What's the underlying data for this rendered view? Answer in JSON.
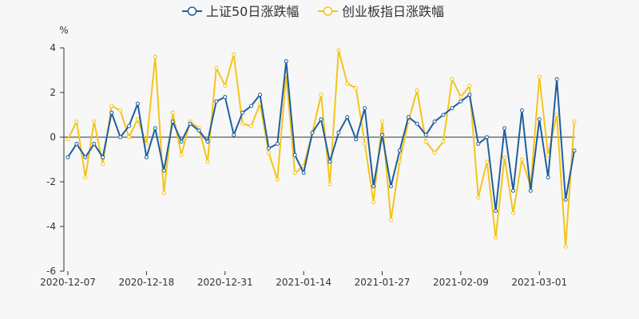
{
  "chart_data": {
    "type": "line",
    "ylabel": "%",
    "ylim": [
      -6,
      4
    ],
    "yticks": [
      -6,
      -4,
      -2,
      0,
      2,
      4
    ],
    "xtick_labels": [
      "2020-12-07",
      "2020-12-18",
      "2020-12-31",
      "2021-01-14",
      "2021-01-27",
      "2021-02-09",
      "2021-03-01"
    ],
    "xtick_indices": [
      0,
      9,
      18,
      27,
      36,
      45,
      54
    ],
    "legend_position": "top-center",
    "grid": false,
    "series": [
      {
        "name": "上证50日涨跌幅",
        "color": "#1f5fa0",
        "values": [
          -0.9,
          -0.3,
          -0.9,
          -0.3,
          -0.9,
          1.1,
          0.0,
          0.5,
          1.5,
          -0.9,
          0.4,
          -1.5,
          0.7,
          -0.2,
          0.6,
          0.3,
          -0.2,
          1.6,
          1.8,
          0.1,
          1.1,
          1.4,
          1.9,
          -0.5,
          -0.3,
          3.4,
          -0.8,
          -1.6,
          0.2,
          0.8,
          -1.1,
          0.2,
          0.9,
          -0.1,
          1.3,
          -2.2,
          0.1,
          -2.2,
          -0.6,
          0.9,
          0.6,
          0.1,
          0.7,
          1.0,
          1.3,
          1.6,
          1.9,
          -0.3,
          0.0,
          -3.3,
          0.4,
          -2.4,
          1.2,
          -2.4,
          0.8,
          -1.8,
          2.6,
          -2.8,
          -0.6
        ]
      },
      {
        "name": "创业板指日涨跌幅",
        "color": "#f5c518",
        "values": [
          -0.1,
          0.7,
          -1.8,
          0.7,
          -1.2,
          1.4,
          1.2,
          0.0,
          0.8,
          -0.3,
          3.6,
          -2.5,
          1.1,
          -0.8,
          0.7,
          0.4,
          -1.1,
          3.1,
          2.3,
          3.7,
          0.6,
          0.5,
          1.5,
          -0.7,
          -1.9,
          2.8,
          -1.6,
          -1.3,
          0.2,
          1.9,
          -2.1,
          3.9,
          2.4,
          2.2,
          -0.3,
          -2.9,
          0.7,
          -3.7,
          -1.1,
          0.7,
          2.1,
          -0.2,
          -0.7,
          -0.2,
          2.6,
          1.8,
          2.3,
          -2.7,
          -1.1,
          -4.5,
          -0.9,
          -3.4,
          -1.0,
          -2.2,
          2.7,
          -0.8,
          1.0,
          -4.9,
          0.7
        ]
      }
    ]
  }
}
